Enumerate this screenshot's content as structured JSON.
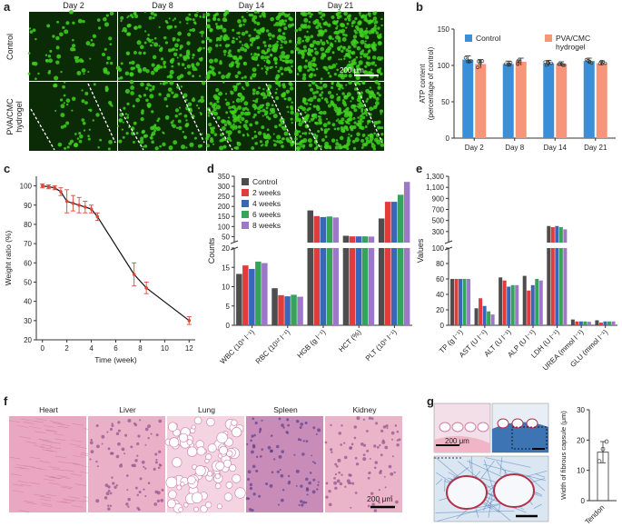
{
  "panel_letters": [
    "a",
    "b",
    "c",
    "d",
    "e",
    "f",
    "g"
  ],
  "panel_a": {
    "days": [
      "Day 2",
      "Day 8",
      "Day 14",
      "Day 21"
    ],
    "rows": [
      "Control",
      "PVA/CMC\nhydrogel"
    ],
    "scale_bar": "200 μm",
    "colors": {
      "background": "#0b2a06",
      "cells": "#3fd11f"
    }
  },
  "panel_f": {
    "organs": [
      "Heart",
      "Liver",
      "Lung",
      "Spleen",
      "Kidney"
    ],
    "scale_bar": "200 μm",
    "colors": {
      "stain": "#e59ab6",
      "background": "#f7dbe6"
    }
  },
  "panel_g": {
    "scale_bar": "200 μm",
    "colors": {
      "masson_blue": "#3c74b4",
      "he_pink": "#f0b6c8"
    }
  },
  "chart_data": [
    {
      "type": "bar",
      "panel": "b",
      "categories": [
        "Day 2",
        "Day 8",
        "Day 14",
        "Day 21"
      ],
      "series": [
        {
          "name": "Control",
          "values": [
            108,
            102,
            103,
            106
          ],
          "errors": [
            5,
            4,
            4,
            4
          ],
          "color": "#3b8fd8"
        },
        {
          "name": "PVA/CMC\nhydrogel",
          "values": [
            102,
            105,
            102,
            103
          ],
          "errors": [
            6,
            5,
            3,
            3
          ],
          "color": "#f7957a"
        }
      ],
      "ylabel": "ATP content\n(percentage of control)",
      "ylim": [
        0,
        150
      ],
      "yticks": [
        0,
        50,
        100,
        150
      ],
      "legend": "top"
    },
    {
      "type": "line",
      "panel": "c",
      "x": [
        0,
        0.5,
        1,
        1.5,
        2,
        2.5,
        3,
        3.5,
        4,
        4.5,
        7.5,
        8.5,
        12
      ],
      "y": [
        100,
        99.5,
        99,
        97,
        92,
        91,
        90,
        89,
        88,
        84,
        54,
        47,
        30
      ],
      "errors": [
        1,
        1,
        1,
        2,
        6,
        4,
        4,
        3,
        2,
        2,
        6,
        3,
        2
      ],
      "xlabel": "Time (week)",
      "ylabel": "Weight ratio (%)",
      "xlim": [
        -0.5,
        12.5
      ],
      "ylim": [
        20,
        105
      ],
      "xticks": [
        0,
        2,
        4,
        6,
        8,
        10,
        12
      ],
      "yticks": [
        20,
        30,
        40,
        50,
        60,
        70,
        80,
        90,
        100
      ]
    },
    {
      "type": "bar",
      "panel": "d",
      "categories": [
        "WBC (10⁹ l⁻¹)",
        "RBC (10¹² l⁻¹)",
        "HGB (g l⁻¹)",
        "HCT (%)",
        "PLT (10⁹ l⁻¹)"
      ],
      "series": [
        {
          "name": "Control",
          "values": [
            13.3,
            9.6,
            180,
            54,
            140
          ],
          "color": "#4d4d4d"
        },
        {
          "name": "2 weeks",
          "values": [
            15.5,
            7.8,
            152,
            51,
            223
          ],
          "color": "#e23b3b"
        },
        {
          "name": "4 weeks",
          "values": [
            14.6,
            7.5,
            147,
            51,
            223
          ],
          "color": "#3a66b8"
        },
        {
          "name": "6 weeks",
          "values": [
            16.5,
            7.9,
            150,
            51,
            258
          ],
          "color": "#35a35a"
        },
        {
          "name": "8 weeks",
          "values": [
            16.1,
            7.4,
            145,
            50,
            322
          ],
          "color": "#9d77c8"
        }
      ],
      "ylabel": "Counts",
      "broken_axis": {
        "lower": [
          0,
          20
        ],
        "upper": [
          20,
          350
        ]
      },
      "yticks_lower": [
        0,
        5,
        10,
        15,
        20
      ],
      "yticks_upper": [
        20,
        50,
        100,
        150,
        200,
        250,
        300,
        350
      ],
      "legend": "top-left"
    },
    {
      "type": "bar",
      "panel": "e",
      "categories": [
        "TP (g l⁻¹)",
        "AST (U l⁻¹)",
        "ALT (U l⁻¹)",
        "ALP (U l⁻¹)",
        "LDH (U l⁻¹)",
        "UREA (mmol l⁻¹)",
        "GLU (mmol l⁻¹)"
      ],
      "series": [
        {
          "name": "Control",
          "values": [
            60,
            22,
            62,
            64,
            400,
            7.5,
            6.5
          ],
          "color": "#4d4d4d"
        },
        {
          "name": "2 weeks",
          "values": [
            60,
            35,
            58,
            45,
            380,
            5,
            3.5
          ],
          "color": "#e23b3b"
        },
        {
          "name": "4 weeks",
          "values": [
            60,
            25,
            50,
            52,
            400,
            5,
            5
          ],
          "color": "#3a66b8"
        },
        {
          "name": "6 weeks",
          "values": [
            60,
            18,
            52,
            60,
            380,
            5,
            5
          ],
          "color": "#35a35a"
        },
        {
          "name": "8 weeks",
          "values": [
            60,
            14,
            52,
            58,
            340,
            4.5,
            5
          ],
          "color": "#9d77c8"
        }
      ],
      "ylabel": "Values",
      "broken_axis": {
        "lower": [
          0,
          100
        ],
        "upper": [
          100,
          1300
        ]
      },
      "yticks_lower": [
        0,
        20,
        40,
        60,
        80,
        100
      ],
      "yticks_upper": [
        100,
        300,
        500,
        700,
        900,
        1100,
        1300
      ],
      "ytick_labels_upper": [
        "100",
        "300",
        "500",
        "700",
        "900",
        "1,100",
        "1,300"
      ]
    },
    {
      "type": "scatter",
      "panel": "g",
      "categories": [
        "Tendon"
      ],
      "values": [
        16
      ],
      "errors": [
        3.5
      ],
      "points": [
        13,
        17,
        19.5
      ],
      "ylabel": "Width of fibrous capsule (μm)",
      "ylim": [
        0,
        30
      ],
      "yticks": [
        0,
        10,
        20,
        30
      ]
    }
  ]
}
